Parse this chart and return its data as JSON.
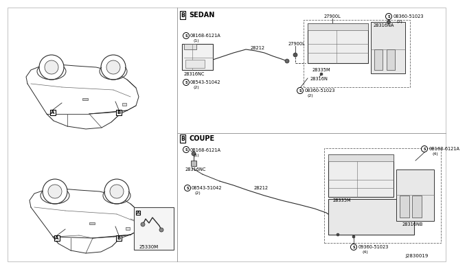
{
  "bg_color": "#ffffff",
  "diagram_ref": "J2830019",
  "sedan_label": "SEDAN",
  "coupe_label": "COUPE",
  "text_color": "#000000",
  "line_color": "#2a2a2a",
  "parts": {
    "sedan_left": {
      "screw1_label": "08168-6121A",
      "screw1_qty": "(1)",
      "box_label": "28316NC",
      "screw2_label": "08543-51042",
      "screw2_qty": "(2)",
      "cable_label": "28212",
      "conn1_label": "27900L",
      "conn2_label": "27900L",
      "screw3_label": "08360-51023",
      "screw3_qty": "(2)",
      "main_label": "28335M",
      "bracket_label": "28316NA",
      "small_label": "28316N",
      "screw4_label": "08360-51023",
      "screw4_qty": "(2)"
    },
    "coupe_left": {
      "screw1_label": "0B168-6121A",
      "screw1_qty": "(1)",
      "box_label": "28316NC",
      "screw2_label": "08543-51042",
      "screw2_qty": "(2)",
      "cable_label": "28212",
      "main_label": "28335M",
      "screw3_label": "0B168-6121A",
      "screw3_qty": "(4)",
      "bracket_label": "28316NB",
      "screw4_label": "09360-51023",
      "screw4_qty": "(4)"
    }
  },
  "inset_label": "25330M"
}
